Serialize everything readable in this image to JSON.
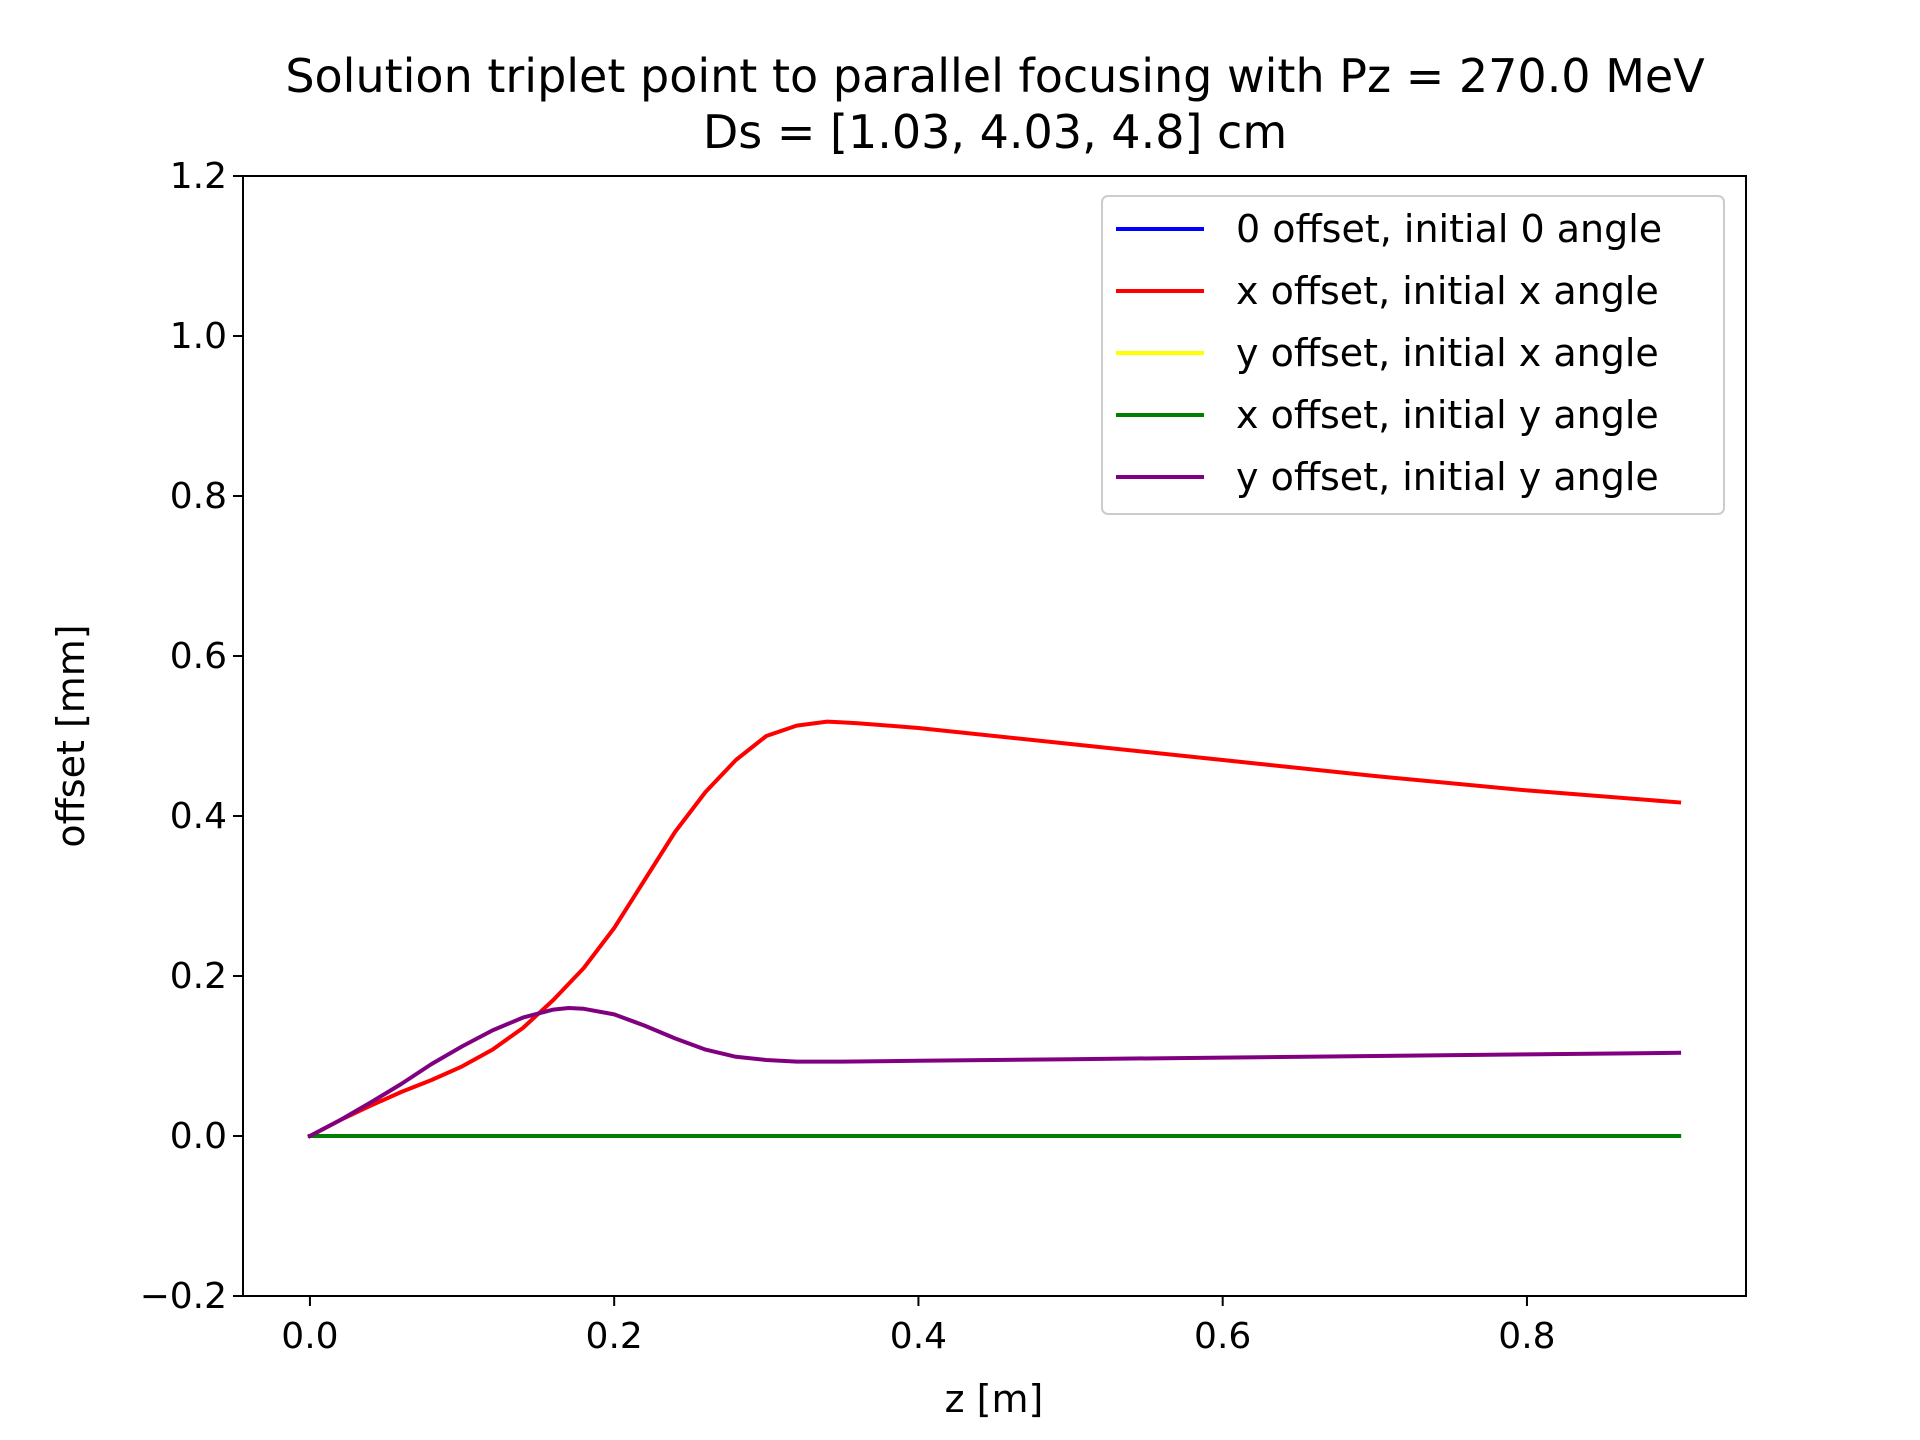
{
  "chart_data": {
    "type": "line",
    "title": "Solution triplet point to parallel focusing with Pz = 270.0 MeV",
    "subtitle": "Ds = [1.03, 4.03, 4.8] cm",
    "xlabel": "z [m]",
    "ylabel": "offset [mm]",
    "xlim": [
      -0.044,
      0.944
    ],
    "ylim": [
      -0.2,
      1.2
    ],
    "x_ticks": [
      0.0,
      0.2,
      0.4,
      0.6,
      0.8
    ],
    "x_tick_labels": [
      "0.0",
      "0.2",
      "0.4",
      "0.6",
      "0.8"
    ],
    "y_ticks": [
      -0.2,
      0.0,
      0.2,
      0.4,
      0.6,
      0.8,
      1.0,
      1.2
    ],
    "y_tick_labels": [
      "−0.2",
      "0.0",
      "0.2",
      "0.4",
      "0.6",
      "0.8",
      "1.0",
      "1.2"
    ],
    "grid": false,
    "legend_position": "top-right",
    "series": [
      {
        "name": "0 offset, initial 0 angle",
        "color": "#0000ff",
        "x": [
          0.0,
          0.9
        ],
        "y": [
          0.0,
          0.0
        ]
      },
      {
        "name": "x offset, initial x angle",
        "color": "#ff0000",
        "x": [
          0.0,
          0.02,
          0.04,
          0.06,
          0.08,
          0.1,
          0.12,
          0.14,
          0.16,
          0.18,
          0.2,
          0.22,
          0.24,
          0.26,
          0.28,
          0.3,
          0.32,
          0.34,
          0.35,
          0.36,
          0.4,
          0.5,
          0.6,
          0.7,
          0.8,
          0.9
        ],
        "y": [
          0.0,
          0.02,
          0.038,
          0.055,
          0.07,
          0.087,
          0.108,
          0.135,
          0.17,
          0.21,
          0.26,
          0.32,
          0.38,
          0.43,
          0.47,
          0.5,
          0.513,
          0.518,
          0.517,
          0.516,
          0.51,
          0.49,
          0.47,
          0.45,
          0.432,
          0.417
        ]
      },
      {
        "name": "y offset, initial x angle",
        "color": "#ffff00",
        "x": [
          0.0,
          0.9
        ],
        "y": [
          0.0,
          0.0
        ]
      },
      {
        "name": "x offset, initial y angle",
        "color": "#008000",
        "x": [
          0.0,
          0.9
        ],
        "y": [
          0.0,
          0.0
        ]
      },
      {
        "name": "y offset, initial y angle",
        "color": "#800080",
        "x": [
          0.0,
          0.02,
          0.04,
          0.06,
          0.08,
          0.1,
          0.12,
          0.14,
          0.16,
          0.17,
          0.18,
          0.2,
          0.22,
          0.24,
          0.26,
          0.28,
          0.3,
          0.32,
          0.35,
          0.4,
          0.5,
          0.6,
          0.7,
          0.8,
          0.9
        ],
        "y": [
          0.0,
          0.02,
          0.042,
          0.065,
          0.09,
          0.112,
          0.132,
          0.148,
          0.158,
          0.16,
          0.159,
          0.152,
          0.138,
          0.122,
          0.108,
          0.099,
          0.095,
          0.093,
          0.093,
          0.094,
          0.096,
          0.098,
          0.1,
          0.102,
          0.104
        ]
      }
    ]
  }
}
